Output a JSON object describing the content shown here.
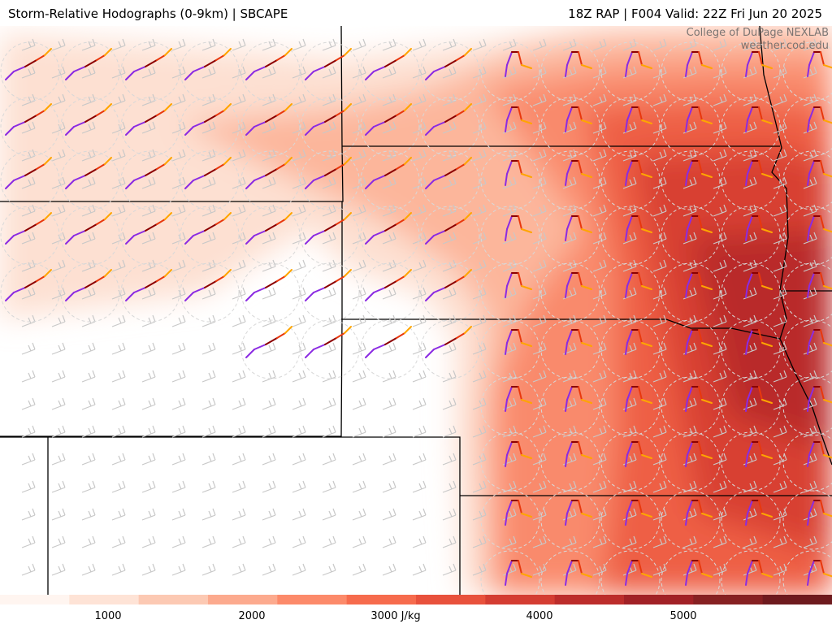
{
  "header": {
    "title_left": "Storm-Relative Hodographs (0-9km) | SBCAPE",
    "title_right": "18Z RAP | F004 Valid: 22Z Fri Jun 20 2025"
  },
  "credit": {
    "line1": "College of DuPage NEXLAB",
    "line2": "weather.cod.edu"
  },
  "colorbar": {
    "unit": "J/kg",
    "min": 0,
    "max": 6000,
    "labels": [
      "1000",
      "2000",
      "3000 J/kg",
      "4000",
      "5000"
    ],
    "label_values": [
      1000,
      2000,
      3000,
      4000,
      5000
    ],
    "colors": [
      "#fff5f0",
      "#fee3d6",
      "#fcc9b3",
      "#fcaa8e",
      "#fc8a6a",
      "#f66b4d",
      "#e8513c",
      "#d43d32",
      "#bc2d2b",
      "#a12126",
      "#862022",
      "#6e1a1e"
    ]
  },
  "hodograph_colors": [
    "#8b2be2",
    "#8b0000",
    "#e8380d",
    "#ffa500"
  ]
}
